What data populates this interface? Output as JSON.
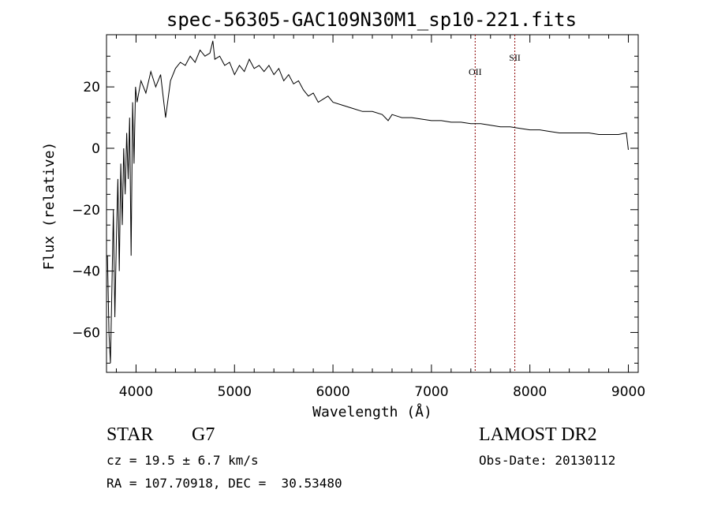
{
  "chart_data": {
    "type": "line",
    "title": "spec-56305-GAC109N30M1_sp10-221.fits",
    "xlabel": "Wavelength (Å)",
    "ylabel": "Flux (relative)",
    "xlim": [
      3700,
      9100
    ],
    "ylim": [
      -73,
      37
    ],
    "x_ticks": [
      4000,
      5000,
      6000,
      7000,
      8000,
      9000
    ],
    "y_ticks": [
      -60,
      -40,
      -20,
      0,
      20
    ],
    "line_color": "#000000",
    "marker_color": "#8b0000",
    "series": [
      {
        "x": [
          3710,
          3725,
          3740,
          3755,
          3770,
          3785,
          3800,
          3815,
          3830,
          3845,
          3860,
          3875,
          3890,
          3905,
          3920,
          3935,
          3950,
          3965,
          3980,
          3995,
          4010,
          4050,
          4100,
          4150,
          4200,
          4250,
          4300,
          4350,
          4400,
          4450,
          4500,
          4550,
          4600,
          4650,
          4700,
          4750,
          4780,
          4800,
          4850,
          4900,
          4950,
          5000,
          5050,
          5100,
          5150,
          5200,
          5250,
          5300,
          5350,
          5400,
          5450,
          5500,
          5550,
          5600,
          5650,
          5700,
          5750,
          5800,
          5850,
          5900,
          5950,
          6000,
          6100,
          6200,
          6300,
          6400,
          6500,
          6560,
          6600,
          6700,
          6800,
          6900,
          7000,
          7100,
          7200,
          7300,
          7400,
          7500,
          7600,
          7700,
          7800,
          7900,
          8000,
          8100,
          8200,
          8300,
          8400,
          8500,
          8600,
          8700,
          8800,
          8900,
          8980,
          9000
        ],
        "y": [
          -35,
          -60,
          -70,
          -45,
          -20,
          -55,
          -30,
          -10,
          -40,
          -5,
          -25,
          0,
          -15,
          5,
          -10,
          10,
          -35,
          15,
          -5,
          20,
          15,
          22,
          18,
          25,
          20,
          24,
          10,
          22,
          26,
          28,
          27,
          30,
          28,
          32,
          30,
          31,
          35,
          29,
          30,
          27,
          28,
          24,
          27,
          25,
          29,
          26,
          27,
          25,
          27,
          24,
          26,
          22,
          24,
          21,
          22,
          19,
          17,
          18,
          15,
          16,
          17,
          15,
          14,
          13,
          12,
          12,
          11,
          9,
          11,
          10,
          10,
          9.5,
          9,
          9,
          8.5,
          8.5,
          8,
          8,
          7.5,
          7,
          7,
          6.5,
          6,
          6,
          5.5,
          5,
          5,
          5,
          5,
          4.5,
          4.5,
          4.5,
          5,
          -0.5
        ]
      }
    ],
    "line_markers": [
      {
        "name": "OII",
        "x": 7444
      },
      {
        "name": "SII",
        "x": 7847
      }
    ]
  },
  "info": {
    "class_label": "STAR",
    "subclass_label": "G7",
    "cz_text": "cz = 19.5 ± 6.7 km/s",
    "radec_text": "RA = 107.70918, DEC =  30.53480",
    "survey_label": "LAMOST DR2",
    "obs_date_text": "Obs-Date: 20130112"
  }
}
